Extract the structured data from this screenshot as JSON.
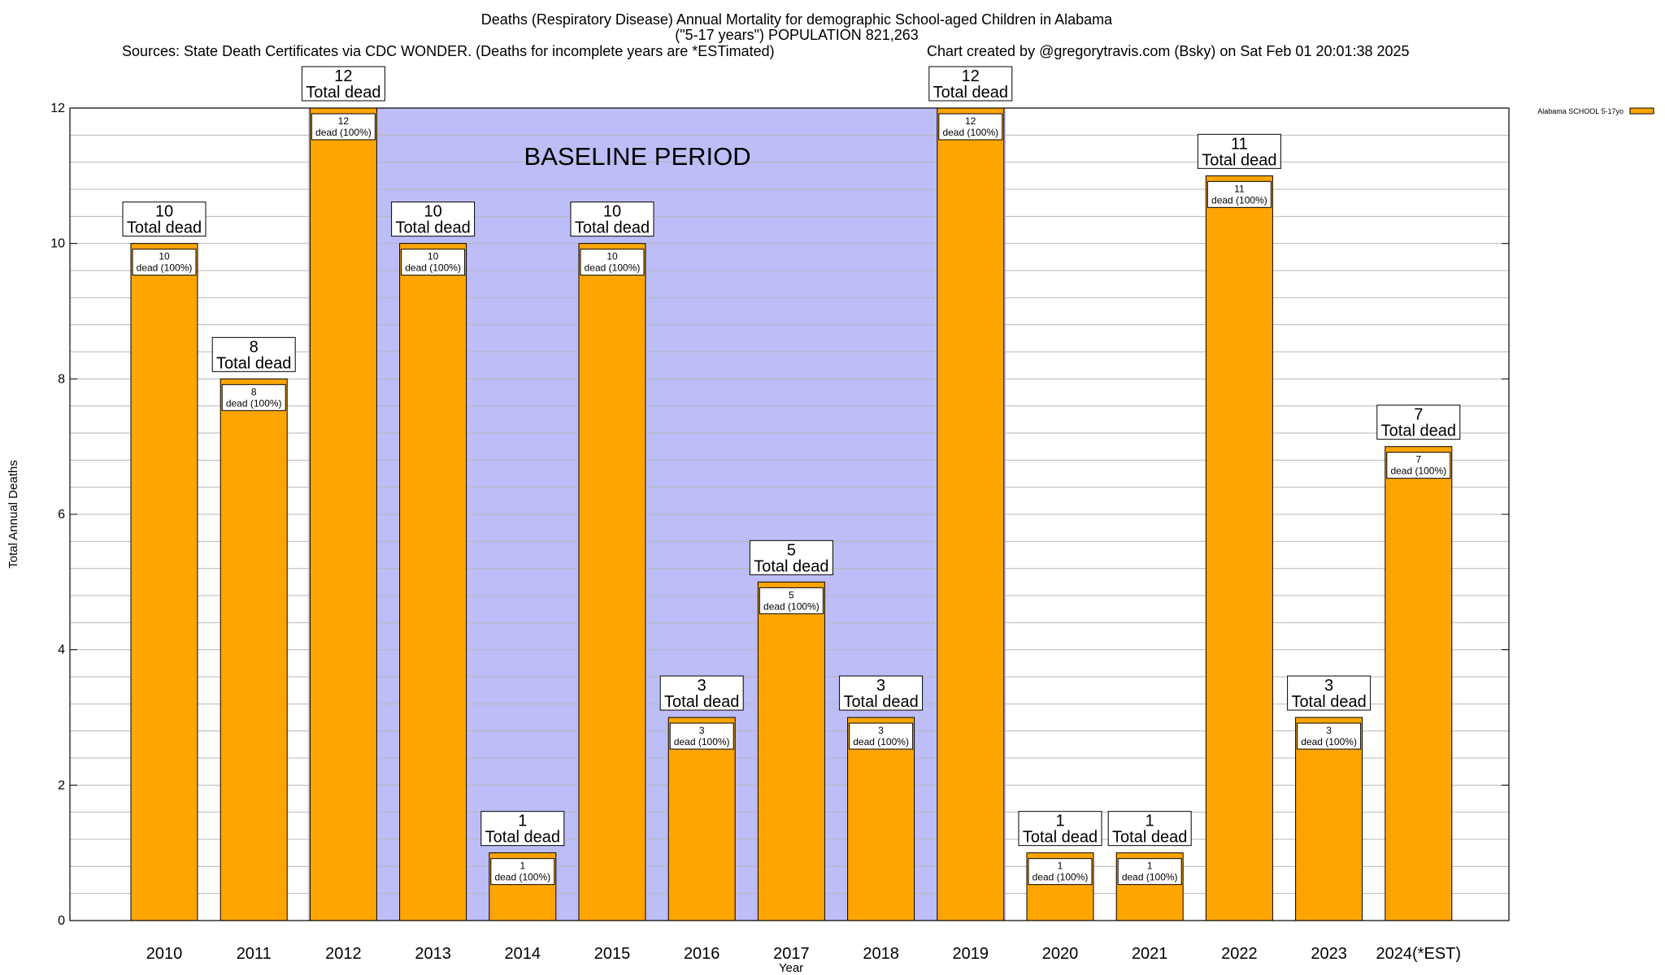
{
  "header": {
    "title_line1": "Deaths (Respiratory Disease) Annual Mortality for demographic School-aged Children in Alabama",
    "title_line2": "(\"5-17 years\") POPULATION 821,263",
    "sources": "Sources: State Death Certificates via CDC WONDER. (Deaths for incomplete years are *ESTimated)",
    "credit": "Chart created by @gregorytravis.com (Bsky) on Sat Feb 01 20:01:38 2025"
  },
  "chart_data": {
    "type": "bar",
    "categories": [
      "2010",
      "2011",
      "2012",
      "2013",
      "2014",
      "2015",
      "2016",
      "2017",
      "2018",
      "2019",
      "2020",
      "2021",
      "2022",
      "2023",
      "2024(*EST)"
    ],
    "series": [
      {
        "name": "Alabama SCHOOL 5-17yo",
        "color": "#ffa500",
        "values": [
          10,
          8,
          12,
          10,
          1,
          10,
          3,
          5,
          3,
          12,
          1,
          1,
          11,
          3,
          7
        ]
      }
    ],
    "xlabel": "Year",
    "ylabel": "Total Annual Deaths",
    "ylim": [
      0,
      12
    ],
    "yticks": [
      0,
      2,
      4,
      6,
      8,
      10,
      12
    ],
    "grid": true,
    "legend_position": "top-right",
    "total_label_suffix": "Total dead",
    "inner_label_suffix": "dead (100%)",
    "annotation": {
      "text": "BASELINE PERIOD",
      "from": "2012",
      "to": "2019",
      "color": "#bdbdf7"
    }
  }
}
